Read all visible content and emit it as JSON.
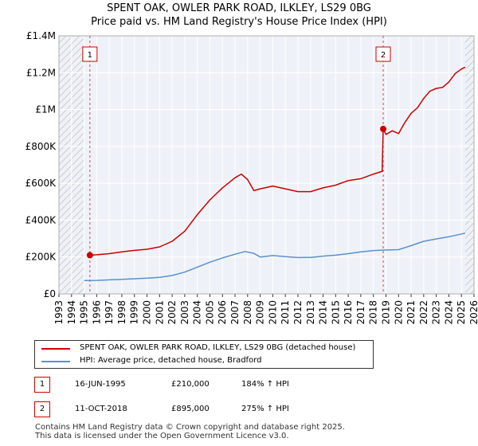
{
  "chart_data": {
    "type": "line",
    "title": "SPENT OAK, OWLER PARK ROAD, ILKLEY, LS29 0BG",
    "subtitle": "Price paid vs. HM Land Registry's House Price Index (HPI)",
    "xlim": [
      1993,
      2026
    ],
    "ylim": [
      0,
      1400000
    ],
    "x_ticks": [
      "1993",
      "1994",
      "1995",
      "1996",
      "1997",
      "1998",
      "1999",
      "2000",
      "2001",
      "2002",
      "2003",
      "2004",
      "2005",
      "2006",
      "2007",
      "2008",
      "2009",
      "2010",
      "2011",
      "2012",
      "2013",
      "2014",
      "2015",
      "2016",
      "2017",
      "2018",
      "2019",
      "2020",
      "2021",
      "2022",
      "2023",
      "2024",
      "2025",
      "2026"
    ],
    "y_ticks": [
      {
        "value": 0,
        "label": "£0"
      },
      {
        "value": 200000,
        "label": "£200K"
      },
      {
        "value": 400000,
        "label": "£400K"
      },
      {
        "value": 600000,
        "label": "£600K"
      },
      {
        "value": 800000,
        "label": "£800K"
      },
      {
        "value": 1000000,
        "label": "£1M"
      },
      {
        "value": 1200000,
        "label": "£1.2M"
      },
      {
        "value": 1400000,
        "label": "£1.4M"
      }
    ],
    "hatched_regions": [
      [
        1993,
        1995.0
      ],
      [
        2025.3,
        2026
      ]
    ],
    "series": [
      {
        "name": "SPENT OAK, OWLER PARK ROAD, ILKLEY, LS29 0BG (detached house)",
        "color": "#cc0000",
        "points": [
          [
            1995.46,
            210000
          ],
          [
            1996,
            212000
          ],
          [
            1997,
            218000
          ],
          [
            1998,
            228000
          ],
          [
            1999,
            236000
          ],
          [
            2000,
            242000
          ],
          [
            2001,
            255000
          ],
          [
            2002,
            285000
          ],
          [
            2003,
            340000
          ],
          [
            2004,
            430000
          ],
          [
            2005,
            510000
          ],
          [
            2006,
            575000
          ],
          [
            2007,
            630000
          ],
          [
            2007.5,
            650000
          ],
          [
            2008,
            620000
          ],
          [
            2008.5,
            560000
          ],
          [
            2009,
            570000
          ],
          [
            2010,
            585000
          ],
          [
            2011,
            570000
          ],
          [
            2012,
            555000
          ],
          [
            2013,
            555000
          ],
          [
            2014,
            575000
          ],
          [
            2015,
            590000
          ],
          [
            2016,
            615000
          ],
          [
            2017,
            625000
          ],
          [
            2018,
            650000
          ],
          [
            2018.7,
            665000
          ],
          [
            2018.78,
            895000
          ],
          [
            2019,
            865000
          ],
          [
            2019.5,
            885000
          ],
          [
            2020,
            870000
          ],
          [
            2020.5,
            930000
          ],
          [
            2021,
            980000
          ],
          [
            2021.5,
            1010000
          ],
          [
            2022,
            1060000
          ],
          [
            2022.5,
            1100000
          ],
          [
            2023,
            1115000
          ],
          [
            2023.5,
            1120000
          ],
          [
            2024,
            1150000
          ],
          [
            2024.5,
            1195000
          ],
          [
            2025,
            1220000
          ],
          [
            2025.3,
            1230000
          ]
        ]
      },
      {
        "name": "HPI: Average price, detached house, Bradford",
        "color": "#5b8fcf",
        "points": [
          [
            1995,
            72000
          ],
          [
            1996,
            73000
          ],
          [
            1997,
            76000
          ],
          [
            1998,
            79000
          ],
          [
            1999,
            82000
          ],
          [
            2000,
            85000
          ],
          [
            2001,
            90000
          ],
          [
            2002,
            100000
          ],
          [
            2003,
            118000
          ],
          [
            2004,
            145000
          ],
          [
            2005,
            172000
          ],
          [
            2006,
            195000
          ],
          [
            2007,
            215000
          ],
          [
            2007.8,
            230000
          ],
          [
            2008.5,
            220000
          ],
          [
            2009,
            200000
          ],
          [
            2010,
            208000
          ],
          [
            2011,
            202000
          ],
          [
            2012,
            197000
          ],
          [
            2013,
            198000
          ],
          [
            2014,
            205000
          ],
          [
            2015,
            210000
          ],
          [
            2016,
            218000
          ],
          [
            2017,
            228000
          ],
          [
            2018,
            235000
          ],
          [
            2019,
            238000
          ],
          [
            2020,
            240000
          ],
          [
            2021,
            262000
          ],
          [
            2022,
            285000
          ],
          [
            2023,
            298000
          ],
          [
            2024,
            310000
          ],
          [
            2025,
            325000
          ],
          [
            2025.3,
            330000
          ]
        ]
      }
    ],
    "annotations": [
      {
        "label": "1",
        "x": 1995.46,
        "y": 210000
      },
      {
        "label": "2",
        "x": 2018.78,
        "y": 895000
      }
    ]
  },
  "legend": [
    {
      "label": "SPENT OAK, OWLER PARK ROAD, ILKLEY, LS29 0BG (detached house)",
      "color": "#cc0000"
    },
    {
      "label": "HPI: Average price, detached house, Bradford",
      "color": "#5b8fcf"
    }
  ],
  "sales": [
    {
      "id": "1",
      "date": "16-JUN-1995",
      "price": "£210,000",
      "hpi": "184% ↑ HPI"
    },
    {
      "id": "2",
      "date": "11-OCT-2018",
      "price": "£895,000",
      "hpi": "275% ↑ HPI"
    }
  ],
  "footer": [
    "Contains HM Land Registry data © Crown copyright and database right 2025.",
    "This data is licensed under the Open Government Licence v3.0."
  ]
}
